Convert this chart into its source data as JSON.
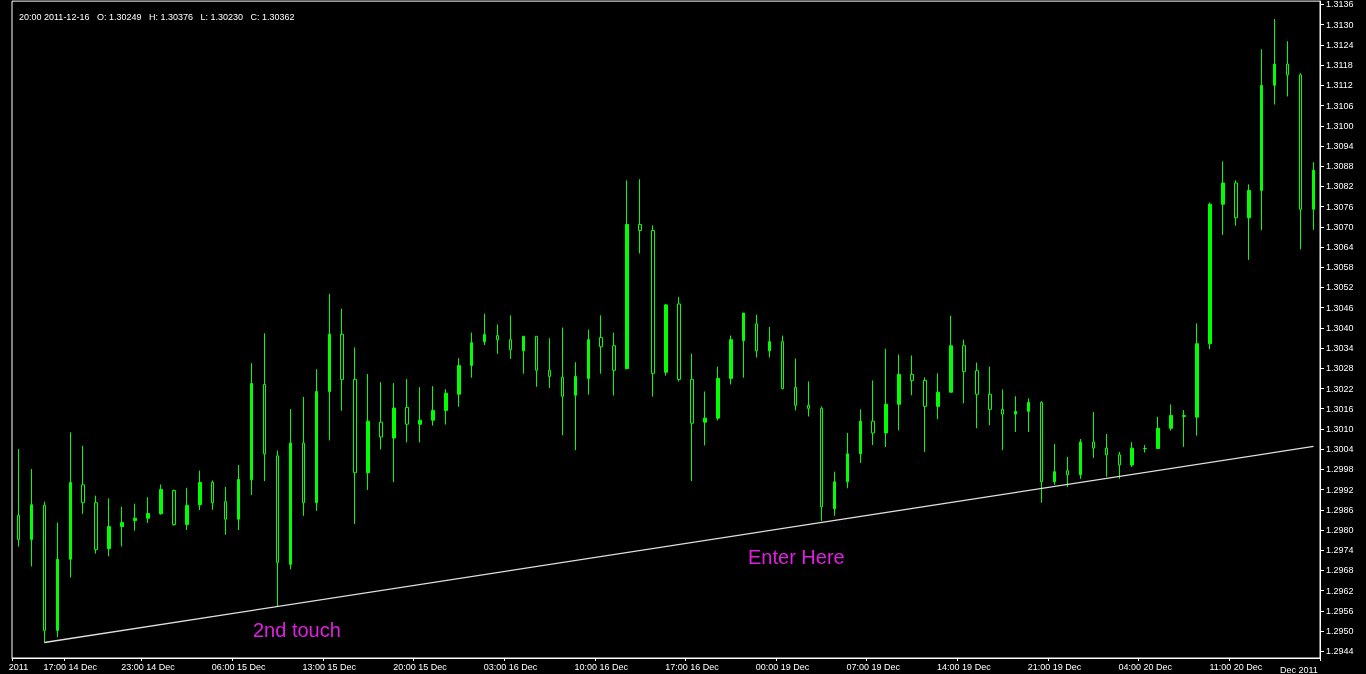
{
  "chart_data": {
    "type": "candlestick",
    "title": "20:00 2011-12-16   O: 1.30249   H: 1.30376   L: 1.30230   C: 1.30362",
    "xlabel": "Dec 2011",
    "annotations": [
      "2nd touch",
      "Enter Here"
    ],
    "color": "#00ff00",
    "categories": [
      "2011",
      null,
      null,
      null,
      "17:00 14 Dec",
      null,
      null,
      null,
      null,
      null,
      "23:00 14 Dec",
      null,
      null,
      null,
      null,
      null,
      null,
      "06:00 15 Dec",
      null,
      null,
      null,
      null,
      null,
      null,
      "13:00 15 Dec",
      null,
      null,
      null,
      null,
      null,
      null,
      "20:00 15 Dec",
      null,
      null,
      null,
      null,
      null,
      null,
      "03:00 16 Dec",
      null,
      null,
      null,
      null,
      null,
      null,
      "10:00 16 Dec",
      null,
      null,
      null,
      null,
      null,
      null,
      "17:00 16 Dec",
      null,
      null,
      null,
      null,
      null,
      null,
      "00:00 19 Dec",
      null,
      null,
      null,
      null,
      null,
      null,
      "07:00 19 Dec",
      null,
      null,
      null,
      null,
      null,
      null,
      "14:00 19 Dec",
      null,
      null,
      null,
      null,
      null,
      null,
      "21:00 19 Dec",
      null,
      null,
      null,
      null,
      null,
      null,
      "04:00 20 Dec",
      null,
      null,
      null,
      null,
      null,
      null,
      "11:00 20 Dec",
      null,
      null,
      null,
      null,
      null,
      null
    ],
    "ohlc": [
      [
        1.29843,
        1.3004,
        1.29751,
        1.29772
      ],
      [
        1.29772,
        1.29981,
        1.29692,
        1.29875
      ],
      [
        1.29873,
        1.29884,
        1.29465,
        1.29502
      ],
      [
        1.29502,
        1.29822,
        1.29482,
        1.29713
      ],
      [
        1.29713,
        1.3009,
        1.29659,
        1.29941
      ],
      [
        1.29934,
        1.3005,
        1.29848,
        1.29881
      ],
      [
        1.29881,
        1.29902,
        1.2973,
        1.29742
      ],
      [
        1.29745,
        1.29894,
        1.29722,
        1.2981
      ],
      [
        1.2981,
        1.29869,
        1.29751,
        1.29822
      ],
      [
        1.29828,
        1.29878,
        1.29798,
        1.29835
      ],
      [
        1.29835,
        1.29897,
        1.29821,
        1.29849
      ],
      [
        1.29848,
        1.29935,
        1.29846,
        1.2992
      ],
      [
        1.29917,
        1.2992,
        1.29813,
        1.29816
      ],
      [
        1.29816,
        1.29925,
        1.298,
        1.29873
      ],
      [
        1.29875,
        1.29976,
        1.29859,
        1.29941
      ],
      [
        1.29941,
        1.29947,
        1.2986,
        1.29881
      ],
      [
        1.29884,
        1.29928,
        1.29786,
        1.29832
      ],
      [
        1.29832,
        1.29993,
        1.298,
        1.2995
      ],
      [
        1.29949,
        1.30295,
        1.29904,
        1.30235
      ],
      [
        1.30232,
        1.30384,
        1.29945,
        1.30026
      ],
      [
        1.3002,
        1.30036,
        1.29573,
        1.29704
      ],
      [
        1.29698,
        1.30159,
        1.29683,
        1.30058
      ],
      [
        1.30058,
        1.30195,
        1.29842,
        1.29881
      ],
      [
        1.29881,
        1.30277,
        1.29857,
        1.30211
      ],
      [
        1.30211,
        1.30501,
        1.30066,
        1.30381
      ],
      [
        1.30381,
        1.30457,
        1.30154,
        1.30247
      ],
      [
        1.30247,
        1.30342,
        1.29818,
        1.2997
      ],
      [
        1.2997,
        1.30263,
        1.29919,
        1.30123
      ],
      [
        1.3012,
        1.30239,
        1.30039,
        1.30076
      ],
      [
        1.30073,
        1.30236,
        1.29942,
        1.30162
      ],
      [
        1.30164,
        1.30248,
        1.3006,
        1.30114
      ],
      [
        1.30114,
        1.30224,
        1.3006,
        1.30126
      ],
      [
        1.30126,
        1.30227,
        1.3011,
        1.30155
      ],
      [
        1.30155,
        1.30218,
        1.30113,
        1.30206
      ],
      [
        1.30203,
        1.3031,
        1.30166,
        1.30288
      ],
      [
        1.30288,
        1.30386,
        1.30252,
        1.30356
      ],
      [
        1.30359,
        1.30442,
        1.30349,
        1.3038
      ],
      [
        1.30377,
        1.3041,
        1.30323,
        1.30365
      ],
      [
        1.30365,
        1.30437,
        1.30308,
        1.30335
      ],
      [
        1.30332,
        1.30375,
        1.30264,
        1.30375
      ],
      [
        1.30375,
        1.30375,
        1.30225,
        1.30274
      ],
      [
        1.30274,
        1.30369,
        1.30222,
        1.30256
      ],
      [
        1.30253,
        1.30401,
        1.30081,
        1.30197
      ],
      [
        1.302,
        1.30298,
        1.30037,
        1.30256
      ],
      [
        1.3025,
        1.30395,
        1.30202,
        1.30365
      ],
      [
        1.30371,
        1.30437,
        1.30264,
        1.30344
      ],
      [
        1.30347,
        1.30386,
        1.30199,
        1.30274
      ],
      [
        1.30279,
        1.30838,
        1.30277,
        1.30707
      ],
      [
        1.30707,
        1.30841,
        1.30621,
        1.30689
      ],
      [
        1.30689,
        1.30704,
        1.30196,
        1.30265
      ],
      [
        1.30268,
        1.30471,
        1.30258,
        1.30468
      ],
      [
        1.30471,
        1.30492,
        1.30241,
        1.30247
      ],
      [
        1.30247,
        1.30323,
        1.29945,
        1.30117
      ],
      [
        1.3012,
        1.30211,
        1.30051,
        1.30132
      ],
      [
        1.30132,
        1.30285,
        1.30125,
        1.3025
      ],
      [
        1.3025,
        1.30377,
        1.30232,
        1.30365
      ],
      [
        1.30362,
        1.30444,
        1.30252,
        1.30444
      ],
      [
        1.30412,
        1.30439,
        1.30312,
        1.30332
      ],
      [
        1.30332,
        1.30403,
        1.30312,
        1.30359
      ],
      [
        1.30359,
        1.30377,
        1.30217,
        1.3022
      ],
      [
        1.30223,
        1.30309,
        1.30155,
        1.3017
      ],
      [
        1.3017,
        1.30241,
        1.30137,
        1.30161
      ],
      [
        1.30161,
        1.30167,
        1.29827,
        1.29869
      ],
      [
        1.29863,
        1.29973,
        1.29842,
        1.29943
      ],
      [
        1.29943,
        1.30088,
        1.29924,
        1.30026
      ],
      [
        1.30026,
        1.30158,
        1.29999,
        1.30123
      ],
      [
        1.30123,
        1.30244,
        1.30052,
        1.30088
      ],
      [
        1.30088,
        1.30338,
        1.30046,
        1.30173
      ],
      [
        1.30173,
        1.30321,
        1.30096,
        1.30262
      ],
      [
        1.30262,
        1.30318,
        1.302,
        1.30244
      ],
      [
        1.30244,
        1.30253,
        1.30032,
        1.30167
      ],
      [
        1.30167,
        1.30265,
        1.30129,
        1.30209
      ],
      [
        1.30209,
        1.30436,
        1.30209,
        1.30347
      ],
      [
        1.30347,
        1.30365,
        1.30176,
        1.3027
      ],
      [
        1.30273,
        1.30297,
        1.30102,
        1.30203
      ],
      [
        1.30203,
        1.30285,
        1.30111,
        1.30158
      ],
      [
        1.30158,
        1.30217,
        1.30037,
        1.30144
      ],
      [
        1.30144,
        1.30197,
        1.30091,
        1.30152
      ],
      [
        1.30152,
        1.30191,
        1.30091,
        1.30179
      ],
      [
        1.30179,
        1.30182,
        1.29881,
        1.29943
      ],
      [
        1.29943,
        1.30055,
        1.29934,
        1.29973
      ],
      [
        1.29976,
        1.30017,
        1.29928,
        1.29964
      ],
      [
        1.29964,
        1.3007,
        1.29952,
        1.30061
      ],
      [
        1.30061,
        1.3015,
        1.30014,
        1.30043
      ],
      [
        1.30043,
        1.30085,
        1.29958,
        1.30023
      ],
      [
        1.30023,
        1.30032,
        1.29952,
        1.29993
      ],
      [
        1.29993,
        1.30061,
        1.29987,
        1.30043
      ],
      [
        1.30042,
        1.30052,
        1.3003,
        1.30042
      ],
      [
        1.30042,
        1.30136,
        1.30042,
        1.30102
      ],
      [
        1.30102,
        1.30173,
        1.30095,
        1.3014
      ],
      [
        1.3014,
        1.30156,
        1.30047,
        1.30137
      ],
      [
        1.30135,
        1.30413,
        1.3008,
        1.30353
      ],
      [
        1.30353,
        1.30772,
        1.30337,
        1.30767
      ],
      [
        1.30767,
        1.30894,
        1.30676,
        1.3083
      ],
      [
        1.3083,
        1.30838,
        1.30703,
        1.30727
      ],
      [
        1.30727,
        1.30826,
        1.30602,
        1.30808
      ],
      [
        1.30808,
        1.31227,
        1.3069,
        1.3112
      ],
      [
        1.3112,
        1.31317,
        1.31063,
        1.31183
      ],
      [
        1.31183,
        1.31251,
        1.31087,
        1.31151
      ],
      [
        1.31151,
        1.31156,
        1.30633,
        1.30752
      ],
      [
        1.30752,
        1.30892,
        1.30691,
        1.30868
      ]
    ],
    "series": [
      {
        "type": "line",
        "color": "#e0e0e0",
        "values": [
          null,
          null,
          1.29466,
          null,
          null,
          null,
          null,
          null,
          null,
          null,
          null,
          null,
          null,
          null,
          null,
          null,
          null,
          null,
          null,
          null,
          null,
          null,
          null,
          null,
          null,
          null,
          null,
          null,
          null,
          null,
          null,
          null,
          null,
          null,
          null,
          null,
          null,
          null,
          null,
          null,
          null,
          null,
          null,
          null,
          null,
          null,
          null,
          null,
          null,
          null,
          null,
          null,
          null,
          null,
          null,
          null,
          null,
          null,
          null,
          null,
          null,
          null,
          null,
          null,
          null,
          null,
          null,
          null,
          null,
          null,
          null,
          null,
          null,
          null,
          null,
          null,
          null,
          null,
          null,
          null,
          null,
          null,
          null,
          null,
          null,
          null,
          null,
          null,
          null,
          null,
          null,
          null,
          null,
          null,
          null,
          null,
          null,
          null,
          null,
          null,
          1.30048
        ]
      }
    ],
    "ylim": [
      1.2942,
      1.3137
    ],
    "yticks": [
      1.2944,
      {
        "value": 1.295,
        "label": "1.2950"
      },
      1.2956,
      1.2962,
      1.2968,
      1.2974,
      {
        "value": 1.298,
        "label": "1.2980"
      },
      1.2986,
      1.2992,
      1.2998,
      1.3004,
      {
        "value": 1.301,
        "label": "1.3010"
      },
      1.3016,
      1.3022,
      1.3028,
      1.3034,
      {
        "value": 1.304,
        "label": "1.3040"
      },
      1.3046,
      1.3052,
      1.3058,
      1.3064,
      {
        "value": 1.307,
        "label": "1.3070"
      },
      1.3076,
      1.3082,
      1.3088,
      1.3094,
      {
        "value": 1.31,
        "label": "1.3100"
      },
      1.3106,
      1.3112,
      1.3118,
      1.3124,
      {
        "value": 1.313,
        "label": "1.3130"
      },
      1.3136
    ]
  }
}
